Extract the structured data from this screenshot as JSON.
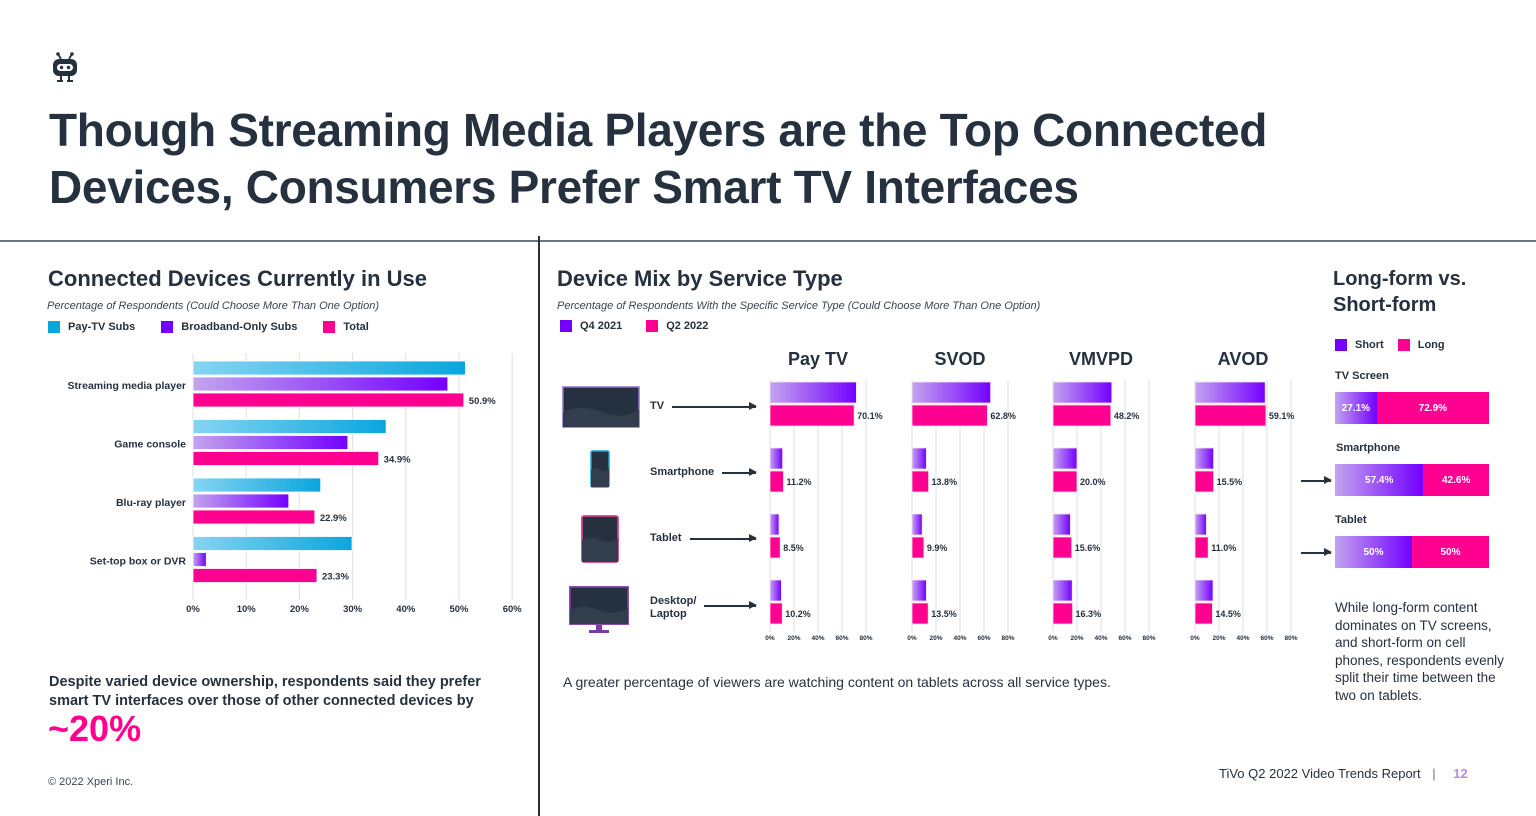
{
  "brand": {
    "logo_icon": "tivo-robot-icon"
  },
  "title": {
    "line1": "Though Streaming Media Players are the Top Connected",
    "line2": "Devices, Consumers Prefer Smart TV Interfaces"
  },
  "colors": {
    "pay_tv": "#0aa6de",
    "broadband": "#7300ff",
    "total": "#ff0090",
    "q4_2021": "#7300ff",
    "q2_2022": "#ff0090",
    "short": "#7300ff",
    "long": "#ff0090",
    "text": "#26313f"
  },
  "left": {
    "heading": "Connected Devices Currently in Use",
    "subheading": "Percentage of Respondents (Could Choose More Than One Option)",
    "legend": [
      "Pay-TV Subs",
      "Broadband-Only Subs",
      "Total"
    ],
    "note": "Despite varied device ownership, respondents said they prefer smart TV interfaces over those of other connected devices by",
    "note_line1": "Despite varied device ownership, respondents said they prefer",
    "note_line2": "smart TV interfaces over those of other connected devices by",
    "highlight": "~20%",
    "copyright": "© 2022 Xperi Inc."
  },
  "middle": {
    "heading": "Device Mix by Service Type",
    "subheading": "Percentage of Respondents With the Specific Service Type (Could Choose More Than One Option)",
    "legend": [
      "Q4 2021",
      "Q2 2022"
    ],
    "devices": [
      {
        "label": "TV",
        "icon": "tv-icon"
      },
      {
        "label": "Smartphone",
        "icon": "smartphone-icon"
      },
      {
        "label": "Tablet",
        "icon": "tablet-icon"
      },
      {
        "label": "Desktop/ Laptop",
        "label_line1": "Desktop/",
        "label_line2": "Laptop",
        "icon": "desktop-monitor-icon"
      }
    ],
    "note": "A greater percentage of viewers are watching content on tablets across all service types."
  },
  "right": {
    "heading_line1": "Long-form vs.",
    "heading_line2": "Short-form",
    "legend": [
      "Short",
      "Long"
    ],
    "rows": [
      {
        "label": "TV Screen",
        "short": 27.1,
        "long": 72.9,
        "short_label": "27.1%",
        "long_label": "72.9%"
      },
      {
        "label": "Smartphone",
        "short": 57.4,
        "long": 42.6,
        "short_label": "57.4%",
        "long_label": "42.6%"
      },
      {
        "label": "Tablet",
        "short": 50,
        "long": 50,
        "short_label": "50%",
        "long_label": "50%"
      }
    ],
    "note": "While long-form content dominates on TV screens, and short-form on cell phones, respondents evenly split their time between the two on tablets."
  },
  "footer": {
    "report": "TiVo Q2 2022 Video Trends Report",
    "separator": "|",
    "page": "12"
  },
  "chart_data": [
    {
      "type": "bar",
      "orientation": "horizontal",
      "title": "Connected Devices Currently in Use",
      "subtitle": "Percentage of Respondents (Could Choose More Than One Option)",
      "categories": [
        "Streaming media player",
        "Game console",
        "Blu-ray player",
        "Set-top box or DVR"
      ],
      "series": [
        {
          "name": "Pay-TV Subs",
          "values": [
            51.2,
            36.3,
            24.0,
            29.9
          ]
        },
        {
          "name": "Broadband-Only Subs",
          "values": [
            47.9,
            29.1,
            18.0,
            2.5
          ]
        },
        {
          "name": "Total",
          "values": [
            50.9,
            34.9,
            22.9,
            23.3
          ],
          "data_labels": [
            "50.9%",
            "34.9%",
            "22.9%",
            "23.3%"
          ]
        }
      ],
      "xlim": [
        0,
        60
      ],
      "xticks": [
        "0%",
        "10%",
        "20%",
        "30%",
        "40%",
        "50%",
        "60%"
      ],
      "grid": true,
      "legend": "top-left"
    },
    {
      "type": "bar",
      "orientation": "horizontal",
      "title": "Device Mix by Service Type",
      "subtitle": "Percentage of Respondents With the Specific Service Type (Could Choose More Than One Option)",
      "panels": [
        {
          "name": "Pay TV",
          "categories": [
            "TV",
            "Smartphone",
            "Tablet",
            "Desktop/Laptop"
          ],
          "series": [
            {
              "name": "Q4 2021",
              "values": [
                72.0,
                10.5,
                7.5,
                9.5
              ]
            },
            {
              "name": "Q2 2022",
              "values": [
                70.1,
                11.2,
                8.5,
                10.2
              ],
              "data_labels": [
                "70.1%",
                "11.2%",
                "8.5%",
                "10.2%"
              ]
            }
          ]
        },
        {
          "name": "SVOD",
          "categories": [
            "TV",
            "Smartphone",
            "Tablet",
            "Desktop/Laptop"
          ],
          "series": [
            {
              "name": "Q4 2021",
              "values": [
                65.5,
                12.0,
                8.5,
                12.0
              ]
            },
            {
              "name": "Q2 2022",
              "values": [
                62.8,
                13.8,
                9.9,
                13.5
              ],
              "data_labels": [
                "62.8%",
                "13.8%",
                "9.9%",
                "13.5%"
              ]
            }
          ]
        },
        {
          "name": "VMVPD",
          "categories": [
            "TV",
            "Smartphone",
            "Tablet",
            "Desktop/Laptop"
          ],
          "series": [
            {
              "name": "Q4 2021",
              "values": [
                49.0,
                20.0,
                14.5,
                16.0
              ]
            },
            {
              "name": "Q2 2022",
              "values": [
                48.2,
                20.0,
                15.6,
                16.3
              ],
              "data_labels": [
                "48.2%",
                "20.0%",
                "15.6%",
                "16.3%"
              ]
            }
          ]
        },
        {
          "name": "AVOD",
          "categories": [
            "TV",
            "Smartphone",
            "Tablet",
            "Desktop/Laptop"
          ],
          "series": [
            {
              "name": "Q4 2021",
              "values": [
                58.5,
                15.5,
                9.5,
                15.0
              ]
            },
            {
              "name": "Q2 2022",
              "values": [
                59.1,
                15.5,
                11.0,
                14.5
              ],
              "data_labels": [
                "59.1%",
                "15.5%",
                "11.0%",
                "14.5%"
              ]
            }
          ]
        }
      ],
      "xlim": [
        0,
        80
      ],
      "xticks": [
        "0%",
        "20%",
        "40%",
        "60%",
        "80%"
      ],
      "grid": true,
      "legend": "top-left"
    },
    {
      "type": "bar",
      "orientation": "horizontal-stacked-100",
      "title": "Long-form vs. Short-form",
      "categories": [
        "TV Screen",
        "Smartphone",
        "Tablet"
      ],
      "series": [
        {
          "name": "Short",
          "values": [
            27.1,
            57.4,
            50
          ]
        },
        {
          "name": "Long",
          "values": [
            72.9,
            42.6,
            50
          ]
        }
      ],
      "legend": "top-left"
    }
  ]
}
